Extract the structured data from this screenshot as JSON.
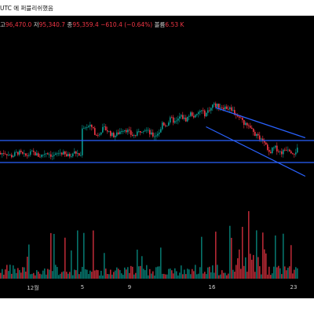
{
  "header": {
    "published_text": "UTC 에 퍼블리쉬했음"
  },
  "legend": {
    "high_label": "고",
    "high_value": "96,470.0",
    "low_label": "저",
    "low_value": "95,340.7",
    "close_label": "종",
    "close_value": "95,359.4",
    "change_value": "−610.4 (−0.64%)",
    "volume_label": "볼륨",
    "volume_value": "6.53 K"
  },
  "colors": {
    "up": "#08998f",
    "down": "#f23645",
    "trendline": "#2962ff",
    "background": "#000000"
  },
  "chart_data": {
    "type": "candlestick",
    "x_tick_labels": [
      "12월",
      "5",
      "9",
      "16",
      "23"
    ],
    "price_range_estimate": [
      93000,
      99000
    ],
    "horizontal_levels": [
      95600,
      94800
    ],
    "descending_channel": {
      "upper": [
        [
          16.3,
          96800
        ],
        [
          24,
          95700
        ]
      ],
      "lower": [
        [
          15.5,
          96100
        ],
        [
          24,
          94300
        ]
      ]
    },
    "grid": false,
    "legend_position": "top-left"
  }
}
